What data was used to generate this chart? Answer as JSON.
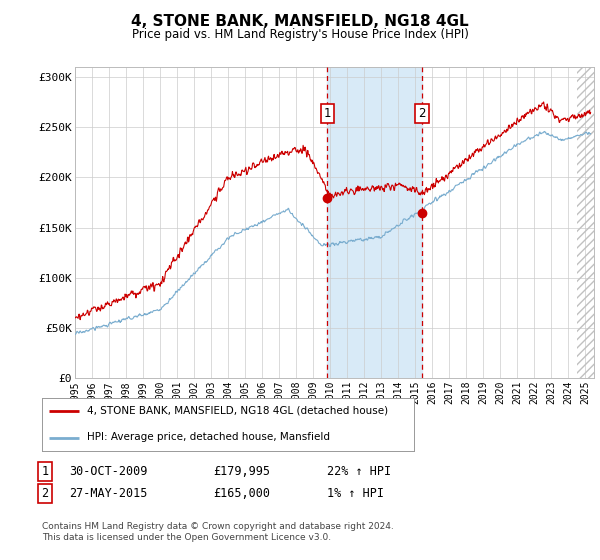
{
  "title": "4, STONE BANK, MANSFIELD, NG18 4GL",
  "subtitle": "Price paid vs. HM Land Registry's House Price Index (HPI)",
  "title_fontsize": 11,
  "subtitle_fontsize": 9,
  "ylabel_ticks": [
    "£0",
    "£50K",
    "£100K",
    "£150K",
    "£200K",
    "£250K",
    "£300K"
  ],
  "ytick_vals": [
    0,
    50000,
    100000,
    150000,
    200000,
    250000,
    300000
  ],
  "ylim": [
    0,
    310000
  ],
  "xlim_start": 1995.0,
  "xlim_end": 2025.5,
  "marker1_x": 2009.83,
  "marker2_x": 2015.4,
  "marker1_label": "1",
  "marker2_label": "2",
  "marker1_y": 179995,
  "marker2_y": 165000,
  "legend_line1": "4, STONE BANK, MANSFIELD, NG18 4GL (detached house)",
  "legend_line2": "HPI: Average price, detached house, Mansfield",
  "table_row1": [
    "1",
    "30-OCT-2009",
    "£179,995",
    "22% ↑ HPI"
  ],
  "table_row2": [
    "2",
    "27-MAY-2015",
    "£165,000",
    "1% ↑ HPI"
  ],
  "footer1": "Contains HM Land Registry data © Crown copyright and database right 2024.",
  "footer2": "This data is licensed under the Open Government Licence v3.0.",
  "red_color": "#cc0000",
  "blue_color": "#7aadcf",
  "shade_color": "#d8eaf7",
  "bg_color": "#ffffff",
  "grid_color": "#cccccc",
  "hatch_start": 2024.5
}
